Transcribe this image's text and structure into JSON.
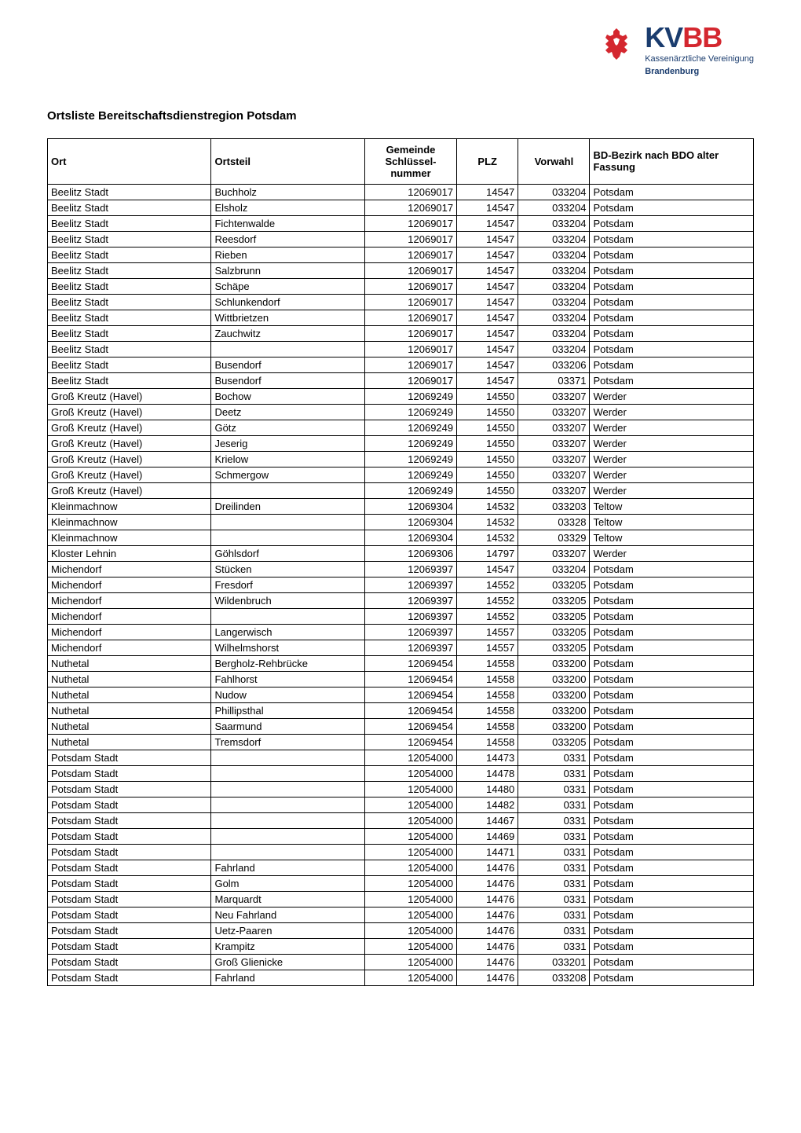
{
  "logo": {
    "kv": "KV",
    "bb": "BB",
    "sub1": "Kassenärztliche Vereinigung",
    "sub2": "Brandenburg"
  },
  "title": "Ortsliste Bereitschaftsdienstregion Potsdam",
  "table": {
    "columns": [
      {
        "label": "Ort",
        "class": "col-ort"
      },
      {
        "label": "Ortsteil",
        "class": "col-ortsteil"
      },
      {
        "label": "Gemeinde Schlüssel-nummer",
        "class": "col-gemeinde center"
      },
      {
        "label": "PLZ",
        "class": "col-plz center"
      },
      {
        "label": "Vorwahl",
        "class": "col-vorwahl center"
      },
      {
        "label": "BD-Bezirk nach BDO alter Fassung",
        "class": "col-bd"
      }
    ],
    "rows": [
      [
        "Beelitz Stadt",
        "Buchholz",
        "12069017",
        "14547",
        "033204",
        "Potsdam"
      ],
      [
        "Beelitz Stadt",
        "Elsholz",
        "12069017",
        "14547",
        "033204",
        "Potsdam"
      ],
      [
        "Beelitz Stadt",
        "Fichtenwalde",
        "12069017",
        "14547",
        "033204",
        "Potsdam"
      ],
      [
        "Beelitz Stadt",
        "Reesdorf",
        "12069017",
        "14547",
        "033204",
        "Potsdam"
      ],
      [
        "Beelitz Stadt",
        "Rieben",
        "12069017",
        "14547",
        "033204",
        "Potsdam"
      ],
      [
        "Beelitz Stadt",
        "Salzbrunn",
        "12069017",
        "14547",
        "033204",
        "Potsdam"
      ],
      [
        "Beelitz Stadt",
        "Schäpe",
        "12069017",
        "14547",
        "033204",
        "Potsdam"
      ],
      [
        "Beelitz Stadt",
        "Schlunkendorf",
        "12069017",
        "14547",
        "033204",
        "Potsdam"
      ],
      [
        "Beelitz Stadt",
        "Wittbrietzen",
        "12069017",
        "14547",
        "033204",
        "Potsdam"
      ],
      [
        "Beelitz Stadt",
        "Zauchwitz",
        "12069017",
        "14547",
        "033204",
        "Potsdam"
      ],
      [
        "Beelitz Stadt",
        "",
        "12069017",
        "14547",
        "033204",
        "Potsdam"
      ],
      [
        "Beelitz Stadt",
        "Busendorf",
        "12069017",
        "14547",
        "033206",
        "Potsdam"
      ],
      [
        "Beelitz Stadt",
        "Busendorf",
        "12069017",
        "14547",
        "03371",
        "Potsdam"
      ],
      [
        "Groß Kreutz (Havel)",
        "Bochow",
        "12069249",
        "14550",
        "033207",
        "Werder"
      ],
      [
        "Groß Kreutz (Havel)",
        "Deetz",
        "12069249",
        "14550",
        "033207",
        "Werder"
      ],
      [
        "Groß Kreutz (Havel)",
        "Götz",
        "12069249",
        "14550",
        "033207",
        "Werder"
      ],
      [
        "Groß Kreutz (Havel)",
        "Jeserig",
        "12069249",
        "14550",
        "033207",
        "Werder"
      ],
      [
        "Groß Kreutz (Havel)",
        "Krielow",
        "12069249",
        "14550",
        "033207",
        "Werder"
      ],
      [
        "Groß Kreutz (Havel)",
        "Schmergow",
        "12069249",
        "14550",
        "033207",
        "Werder"
      ],
      [
        "Groß Kreutz (Havel)",
        "",
        "12069249",
        "14550",
        "033207",
        "Werder"
      ],
      [
        "Kleinmachnow",
        "Dreilinden",
        "12069304",
        "14532",
        "033203",
        "Teltow"
      ],
      [
        "Kleinmachnow",
        "",
        "12069304",
        "14532",
        "03328",
        "Teltow"
      ],
      [
        "Kleinmachnow",
        "",
        "12069304",
        "14532",
        "03329",
        "Teltow"
      ],
      [
        "Kloster Lehnin",
        "Göhlsdorf",
        "12069306",
        "14797",
        "033207",
        "Werder"
      ],
      [
        "Michendorf",
        "Stücken",
        "12069397",
        "14547",
        "033204",
        "Potsdam"
      ],
      [
        "Michendorf",
        "Fresdorf",
        "12069397",
        "14552",
        "033205",
        "Potsdam"
      ],
      [
        "Michendorf",
        "Wildenbruch",
        "12069397",
        "14552",
        "033205",
        "Potsdam"
      ],
      [
        "Michendorf",
        "",
        "12069397",
        "14552",
        "033205",
        "Potsdam"
      ],
      [
        "Michendorf",
        "Langerwisch",
        "12069397",
        "14557",
        "033205",
        "Potsdam"
      ],
      [
        "Michendorf",
        "Wilhelmshorst",
        "12069397",
        "14557",
        "033205",
        "Potsdam"
      ],
      [
        "Nuthetal",
        "Bergholz-Rehbrücke",
        "12069454",
        "14558",
        "033200",
        "Potsdam"
      ],
      [
        "Nuthetal",
        "Fahlhorst",
        "12069454",
        "14558",
        "033200",
        "Potsdam"
      ],
      [
        "Nuthetal",
        "Nudow",
        "12069454",
        "14558",
        "033200",
        "Potsdam"
      ],
      [
        "Nuthetal",
        "Phillipsthal",
        "12069454",
        "14558",
        "033200",
        "Potsdam"
      ],
      [
        "Nuthetal",
        "Saarmund",
        "12069454",
        "14558",
        "033200",
        "Potsdam"
      ],
      [
        "Nuthetal",
        "Tremsdorf",
        "12069454",
        "14558",
        "033205",
        "Potsdam"
      ],
      [
        "Potsdam Stadt",
        "",
        "12054000",
        "14473",
        "0331",
        "Potsdam"
      ],
      [
        "Potsdam Stadt",
        "",
        "12054000",
        "14478",
        "0331",
        "Potsdam"
      ],
      [
        "Potsdam Stadt",
        "",
        "12054000",
        "14480",
        "0331",
        "Potsdam"
      ],
      [
        "Potsdam Stadt",
        "",
        "12054000",
        "14482",
        "0331",
        "Potsdam"
      ],
      [
        "Potsdam Stadt",
        "",
        "12054000",
        "14467",
        "0331",
        "Potsdam"
      ],
      [
        "Potsdam Stadt",
        "",
        "12054000",
        "14469",
        "0331",
        "Potsdam"
      ],
      [
        "Potsdam Stadt",
        "",
        "12054000",
        "14471",
        "0331",
        "Potsdam"
      ],
      [
        "Potsdam Stadt",
        "Fahrland",
        "12054000",
        "14476",
        "0331",
        "Potsdam"
      ],
      [
        "Potsdam Stadt",
        "Golm",
        "12054000",
        "14476",
        "0331",
        "Potsdam"
      ],
      [
        "Potsdam Stadt",
        "Marquardt",
        "12054000",
        "14476",
        "0331",
        "Potsdam"
      ],
      [
        "Potsdam Stadt",
        "Neu Fahrland",
        "12054000",
        "14476",
        "0331",
        "Potsdam"
      ],
      [
        "Potsdam Stadt",
        "Uetz-Paaren",
        "12054000",
        "14476",
        "0331",
        "Potsdam"
      ],
      [
        "Potsdam Stadt",
        "Krampitz",
        "12054000",
        "14476",
        "0331",
        "Potsdam"
      ],
      [
        "Potsdam Stadt",
        "Groß Glienicke",
        "12054000",
        "14476",
        "033201",
        "Potsdam"
      ],
      [
        "Potsdam Stadt",
        "Fahrland",
        "12054000",
        "14476",
        "033208",
        "Potsdam"
      ]
    ]
  }
}
